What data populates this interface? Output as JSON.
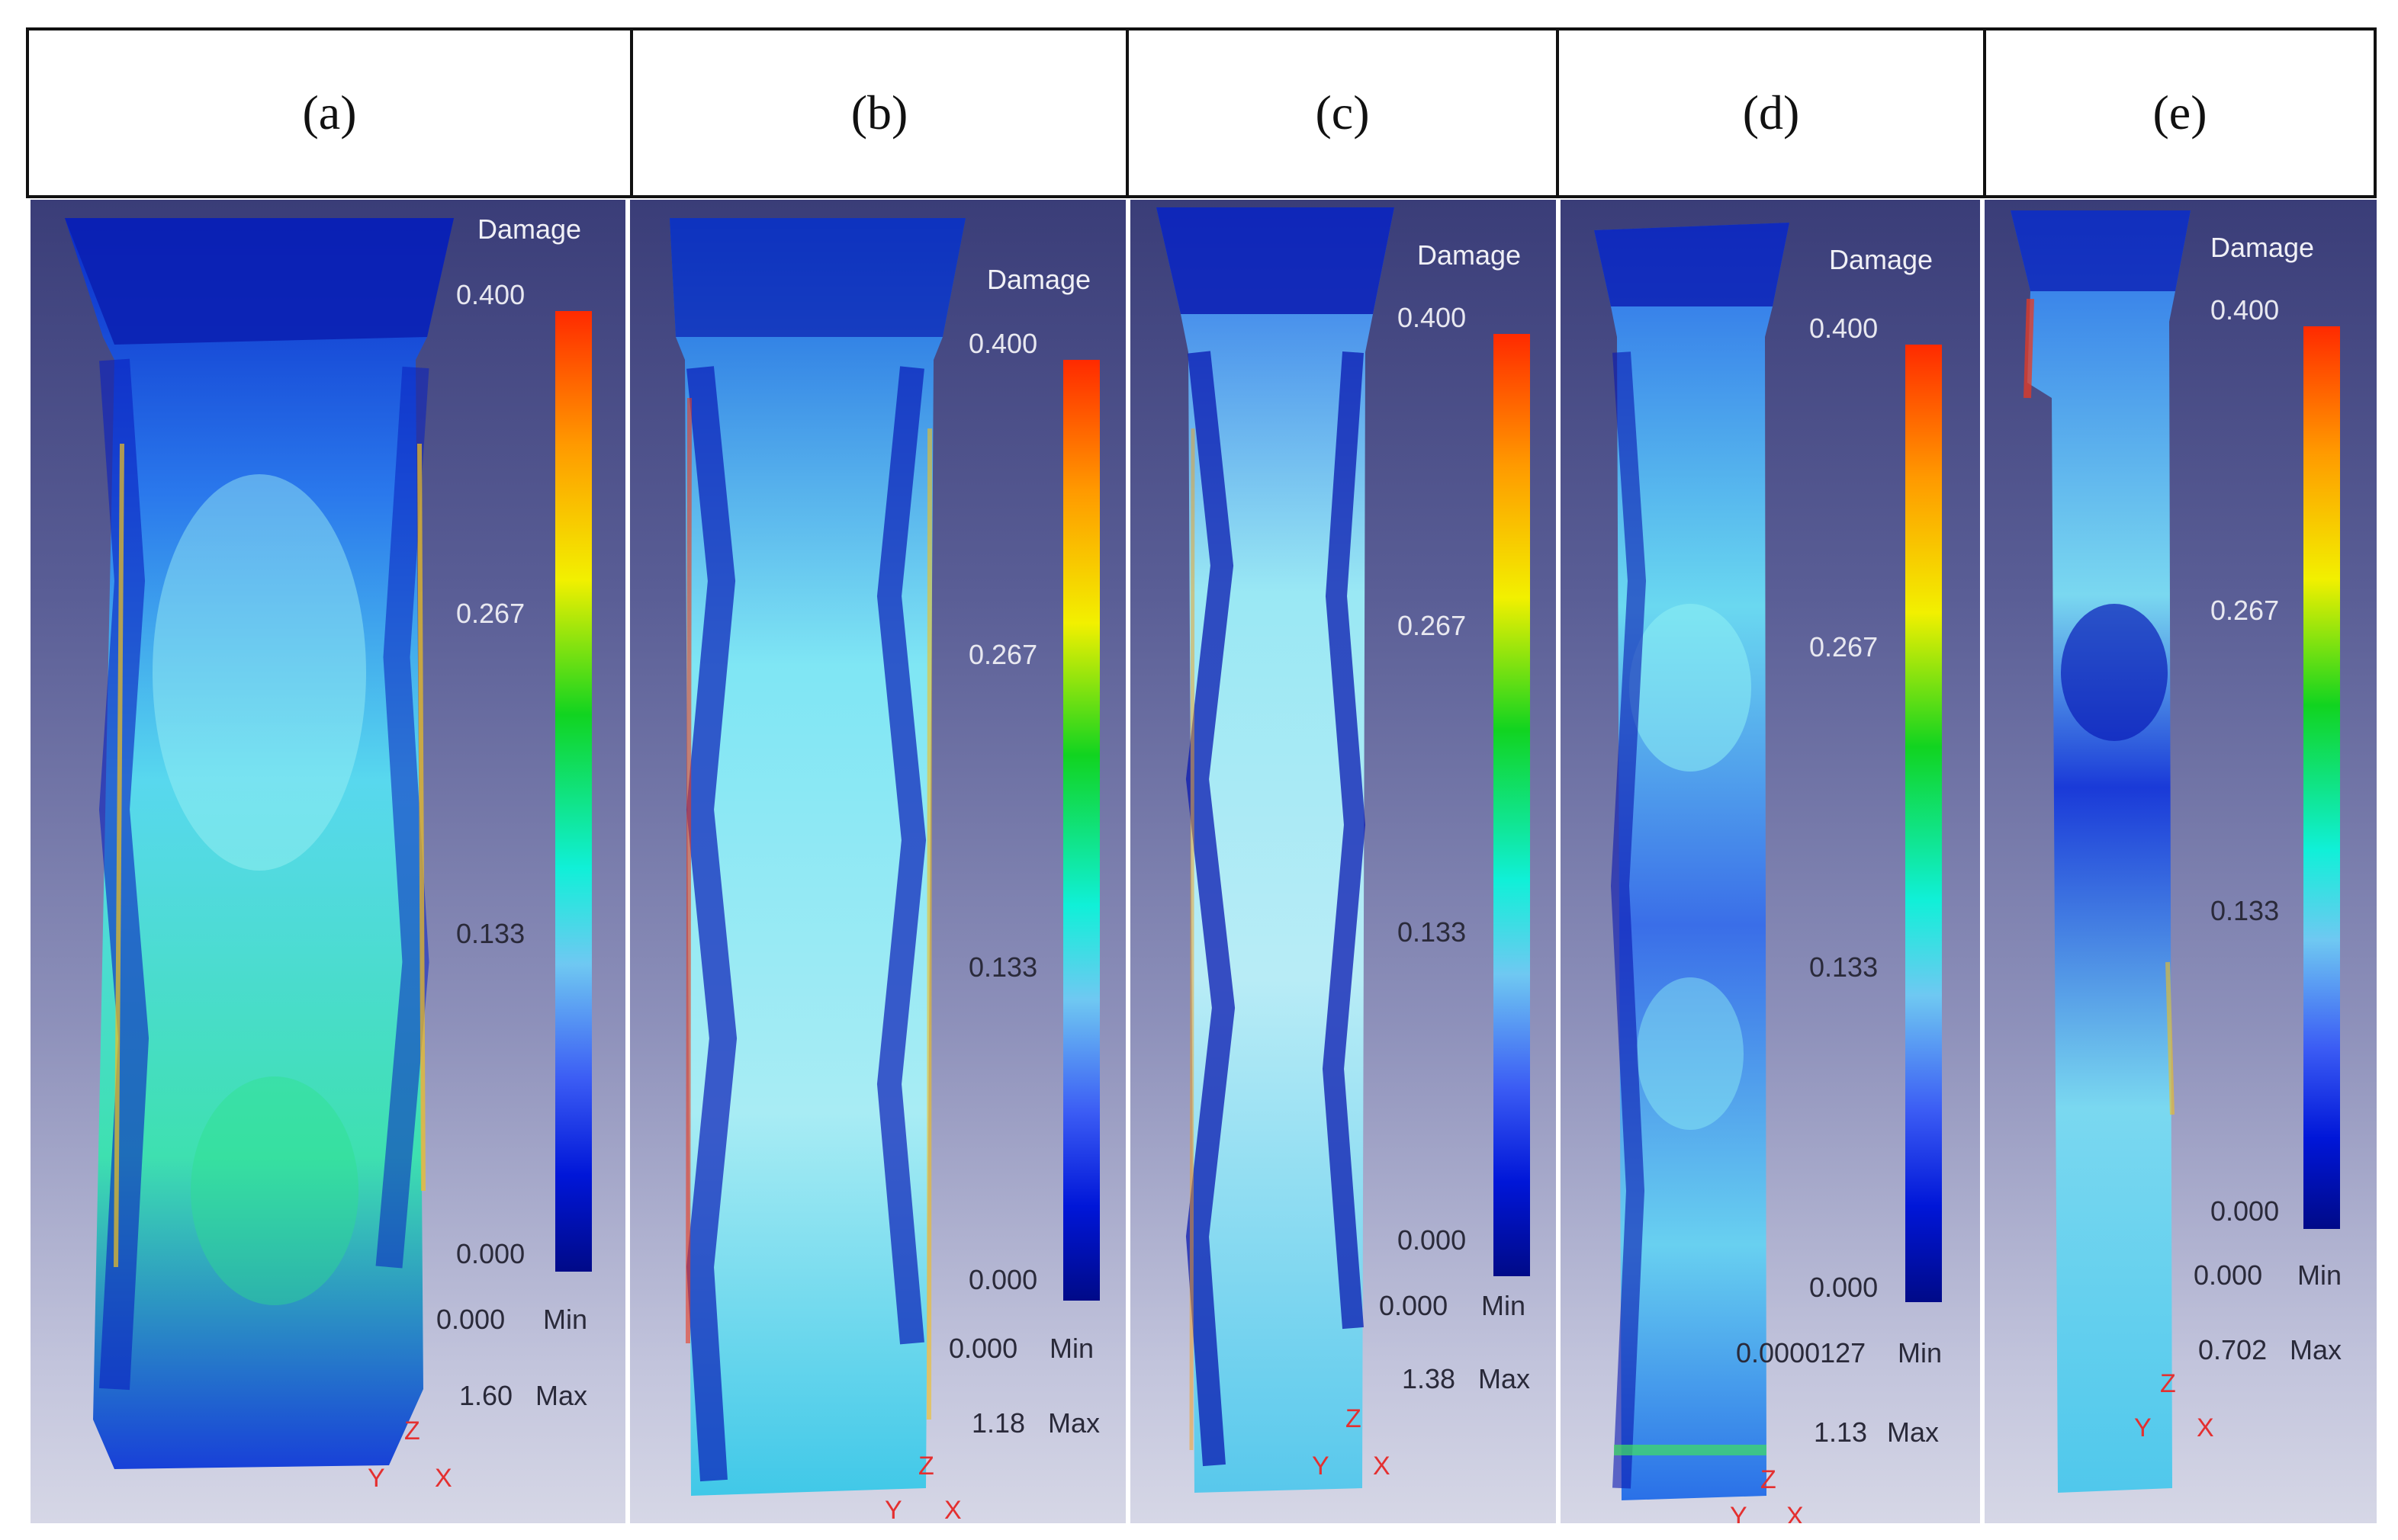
{
  "colors": {
    "border": "#111111",
    "bg_top": "#3a3d78",
    "bg_bottom": "#d6d7e6",
    "colormap": [
      "#ff2a00",
      "#ff9a00",
      "#f2f000",
      "#11d420",
      "#10f0d8",
      "#6fc8f2",
      "#3b5cf4",
      "#0016d8",
      "#000a88"
    ]
  },
  "panels": [
    {
      "label": "(a)",
      "legend_title": "Damage",
      "ticks": [
        "0.400",
        "0.267",
        "0.133",
        "0.000"
      ],
      "min_value": "0.000",
      "min_label": "Min",
      "max_value": "1.60",
      "max_label": "Max",
      "axis": {
        "z": "Z",
        "y": "Y",
        "x": "X"
      }
    },
    {
      "label": "(b)",
      "legend_title": "Damage",
      "ticks": [
        "0.400",
        "0.267",
        "0.133",
        "0.000"
      ],
      "min_value": "0.000",
      "min_label": "Min",
      "max_value": "1.18",
      "max_label": "Max",
      "axis": {
        "z": "Z",
        "y": "Y",
        "x": "X"
      }
    },
    {
      "label": "(c)",
      "legend_title": "Damage",
      "ticks": [
        "0.400",
        "0.267",
        "0.133",
        "0.000"
      ],
      "min_value": "0.000",
      "min_label": "Min",
      "max_value": "1.38",
      "max_label": "Max",
      "axis": {
        "z": "Z",
        "y": "Y",
        "x": "X"
      }
    },
    {
      "label": "(d)",
      "legend_title": "Damage",
      "ticks": [
        "0.400",
        "0.267",
        "0.133",
        "0.000"
      ],
      "min_value": "0.0000127",
      "min_label": "Min",
      "max_value": "1.13",
      "max_label": "Max",
      "axis": {
        "z": "Z",
        "y": "Y",
        "x": "X"
      }
    },
    {
      "label": "(e)",
      "legend_title": "Damage",
      "ticks": [
        "0.400",
        "0.267",
        "0.133",
        "0.000"
      ],
      "min_value": "0.000",
      "min_label": "Min",
      "max_value": "0.702",
      "max_label": "Max",
      "axis": {
        "z": "Z",
        "y": "Y",
        "x": "X"
      }
    }
  ]
}
